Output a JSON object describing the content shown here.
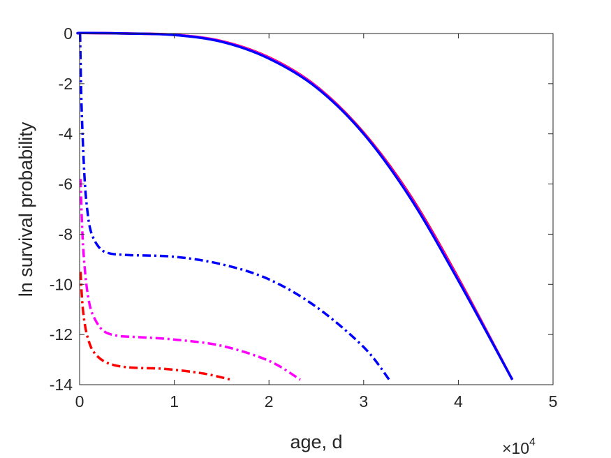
{
  "chart_data": {
    "type": "line",
    "title": "",
    "xlabel": "age, d",
    "ylabel": "ln survival probability",
    "x_multiplier_label": "×10",
    "x_multiplier_exponent": "4",
    "xlim": [
      0,
      5
    ],
    "ylim": [
      -14,
      0
    ],
    "xticks": [
      "0",
      "1",
      "2",
      "3",
      "4",
      "5"
    ],
    "yticks": [
      "0",
      "-2",
      "-4",
      "-6",
      "-8",
      "-10",
      "-12",
      "-14"
    ],
    "grid": false,
    "legend": "none",
    "series": [
      {
        "color": "#ff0000",
        "dash": "solid",
        "x": [
          0,
          0.02,
          0.5,
          1.0,
          1.5,
          2.0,
          2.5,
          3.0,
          3.5,
          4.0,
          4.57
        ],
        "y": [
          0,
          0.02,
          0.0,
          -0.05,
          -0.3,
          -0.95,
          -2.1,
          -3.95,
          -6.5,
          -9.75,
          -13.8
        ]
      },
      {
        "color": "#ff00ff",
        "dash": "solid",
        "x": [
          0,
          0.02,
          0.5,
          1.0,
          1.5,
          2.0,
          2.5,
          3.0,
          3.5,
          4.0,
          4.57
        ],
        "y": [
          0,
          0.02,
          0.0,
          -0.05,
          -0.31,
          -0.97,
          -2.12,
          -3.98,
          -6.55,
          -9.8,
          -13.8
        ]
      },
      {
        "color": "#0000ff",
        "dash": "solid",
        "x": [
          0,
          0.02,
          0.5,
          1.0,
          1.5,
          2.0,
          2.5,
          3.0,
          3.5,
          4.0,
          4.57
        ],
        "y": [
          0,
          0.02,
          0.0,
          -0.06,
          -0.33,
          -1.0,
          -2.15,
          -4.0,
          -6.6,
          -9.85,
          -13.8
        ]
      },
      {
        "color": "#ff0000",
        "dash": "dashdot",
        "x": [
          0.01,
          0.03,
          0.06,
          0.1,
          0.15,
          0.25,
          0.4,
          0.6,
          0.9,
          1.3,
          1.6
        ],
        "y": [
          -9.5,
          -10.8,
          -11.7,
          -12.3,
          -12.7,
          -13.05,
          -13.25,
          -13.33,
          -13.37,
          -13.55,
          -13.8
        ]
      },
      {
        "color": "#ff00ff",
        "dash": "dashdot",
        "x": [
          0.01,
          0.03,
          0.06,
          0.1,
          0.15,
          0.25,
          0.4,
          0.6,
          1.0,
          1.5,
          2.0,
          2.33
        ],
        "y": [
          -5.8,
          -8.0,
          -9.6,
          -10.7,
          -11.3,
          -11.85,
          -12.05,
          -12.1,
          -12.2,
          -12.45,
          -13.05,
          -13.8
        ]
      },
      {
        "color": "#0000ff",
        "dash": "dashdot",
        "x": [
          0.005,
          0.02,
          0.05,
          0.08,
          0.12,
          0.2,
          0.3,
          0.5,
          1.0,
          1.5,
          2.0,
          2.5,
          3.0,
          3.27
        ],
        "y": [
          0,
          -2.8,
          -5.6,
          -7.0,
          -7.9,
          -8.5,
          -8.75,
          -8.83,
          -8.9,
          -9.2,
          -9.8,
          -10.9,
          -12.5,
          -13.8
        ]
      }
    ]
  }
}
